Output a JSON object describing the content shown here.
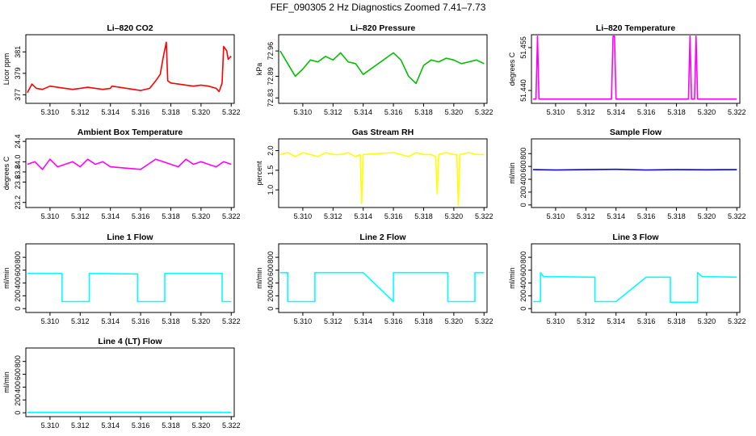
{
  "figure": {
    "title": "FEF_090305  2 Hz Diagnostics Zoomed 7.41–7.73"
  },
  "colors": {
    "red": "#ff0000",
    "green": "#00c000",
    "magenta": "#ff00ff",
    "yellow": "#ffff00",
    "blue": "#0000ff",
    "cyan": "#00ffff"
  },
  "chart_data": [
    {
      "type": "line",
      "title": "Li–820 CO2",
      "xlabel": "",
      "ylabel": "Licor ppm",
      "xlim": [
        5.3084,
        5.3222
      ],
      "ylim": [
        376.2,
        382.6
      ],
      "color": "red",
      "xticks": [
        "5.310",
        "5.312",
        "5.314",
        "5.316",
        "5.318",
        "5.320",
        "5.322"
      ],
      "yticks": [
        "377",
        "379",
        "381"
      ],
      "series": [
        {
          "x": [
            5.3085,
            5.3088,
            5.3091,
            5.3095,
            5.31,
            5.3105,
            5.311,
            5.3115,
            5.312,
            5.3125,
            5.313,
            5.3135,
            5.314,
            5.3141,
            5.316,
            5.3166,
            5.317,
            5.3173,
            5.3175,
            5.3177,
            5.3178,
            5.318,
            5.3185,
            5.319,
            5.3195,
            5.32,
            5.3205,
            5.321,
            5.3212,
            5.3214,
            5.3215,
            5.3217,
            5.3218,
            5.322
          ],
          "y": [
            377.2,
            378.0,
            377.6,
            377.5,
            377.8,
            377.7,
            377.6,
            377.5,
            377.6,
            377.7,
            377.6,
            377.5,
            377.6,
            377.8,
            377.4,
            377.6,
            378.3,
            378.9,
            380.5,
            381.9,
            378.3,
            378.1,
            378.0,
            377.9,
            377.8,
            377.9,
            377.8,
            377.6,
            377.3,
            378.1,
            381.5,
            381.1,
            380.3,
            380.6
          ]
        }
      ]
    },
    {
      "type": "line",
      "title": "Li–820 Pressure",
      "xlabel": "",
      "ylabel": "kPa",
      "xlim": [
        5.3084,
        5.3222
      ],
      "ylim": [
        72.815,
        73.005
      ],
      "color": "green",
      "xticks": [
        "5.310",
        "5.312",
        "5.314",
        "5.316",
        "5.318",
        "5.320",
        "5.322"
      ],
      "yticks": [
        "72.83",
        "72.89",
        "72.96"
      ],
      "series": [
        {
          "x": [
            5.3085,
            5.309,
            5.3095,
            5.31,
            5.3105,
            5.311,
            5.3115,
            5.312,
            5.3125,
            5.313,
            5.3135,
            5.314,
            5.316,
            5.3165,
            5.317,
            5.3175,
            5.318,
            5.3185,
            5.319,
            5.3195,
            5.32,
            5.3205,
            5.321,
            5.3215,
            5.322
          ],
          "y": [
            72.96,
            72.925,
            72.89,
            72.91,
            72.935,
            72.93,
            72.945,
            72.935,
            72.955,
            72.93,
            72.925,
            72.895,
            72.955,
            72.935,
            72.89,
            72.87,
            72.92,
            72.935,
            72.93,
            72.94,
            72.935,
            72.925,
            72.93,
            72.935,
            72.925
          ]
        }
      ]
    },
    {
      "type": "line",
      "title": "Li–820 Temperature",
      "xlabel": "",
      "ylabel": "degrees C",
      "xlim": [
        5.3084,
        5.3222
      ],
      "ylim": [
        51.4355,
        51.4595
      ],
      "color": "magenta",
      "xticks": [
        "5.310",
        "5.312",
        "5.314",
        "5.316",
        "5.318",
        "5.320",
        "5.322"
      ],
      "yticks": [
        "51.440",
        "51.455"
      ],
      "series": [
        {
          "x": [
            5.3085,
            5.3087,
            5.3088,
            5.3089,
            5.3137,
            5.3138,
            5.3139,
            5.314,
            5.3188,
            5.3189,
            5.319,
            5.3192,
            5.3193,
            5.3194,
            5.322
          ],
          "y": [
            51.437,
            51.437,
            51.459,
            51.437,
            51.437,
            51.459,
            51.459,
            51.437,
            51.437,
            51.459,
            51.437,
            51.437,
            51.459,
            51.437,
            51.437
          ]
        }
      ]
    },
    {
      "type": "line",
      "title": "Ambient Box Temperature",
      "xlabel": "",
      "ylabel": "degrees C",
      "xlim": [
        5.3084,
        5.3222
      ],
      "ylim": [
        23.1,
        24.45
      ],
      "color": "magenta",
      "xticks": [
        "5.310",
        "5.312",
        "5.314",
        "5.316",
        "5.318",
        "5.320",
        "5.322"
      ],
      "yticks": [
        "23.2",
        "23.6",
        "23.8",
        "24.0",
        "24.4"
      ],
      "series": [
        {
          "x": [
            5.3085,
            5.309,
            5.3095,
            5.31,
            5.3105,
            5.311,
            5.3115,
            5.312,
            5.3125,
            5.313,
            5.3135,
            5.314,
            5.316,
            5.3165,
            5.317,
            5.3175,
            5.318,
            5.3185,
            5.319,
            5.3195,
            5.32,
            5.3205,
            5.321,
            5.3215,
            5.322
          ],
          "y": [
            23.95,
            24.0,
            23.85,
            24.05,
            23.9,
            23.95,
            24.0,
            23.9,
            24.05,
            23.95,
            24.0,
            23.9,
            23.85,
            23.95,
            24.05,
            24.0,
            23.95,
            23.9,
            24.05,
            23.95,
            24.0,
            23.95,
            23.9,
            24.0,
            23.95
          ]
        }
      ]
    },
    {
      "type": "line",
      "title": "Gas Stream RH",
      "xlabel": "",
      "ylabel": "percent",
      "xlim": [
        5.3084,
        5.3222
      ],
      "ylim": [
        0.55,
        2.3
      ],
      "color": "yellow",
      "xticks": [
        "5.310",
        "5.312",
        "5.314",
        "5.316",
        "5.318",
        "5.320",
        "5.322"
      ],
      "yticks": [
        "1.0",
        "1.5",
        "2.0"
      ],
      "series": [
        {
          "x": [
            5.3085,
            5.309,
            5.3095,
            5.31,
            5.3105,
            5.311,
            5.3115,
            5.312,
            5.3125,
            5.313,
            5.3135,
            5.3138,
            5.3139,
            5.314,
            5.316,
            5.3165,
            5.317,
            5.3175,
            5.318,
            5.3185,
            5.3188,
            5.3189,
            5.319,
            5.3195,
            5.32,
            5.3202,
            5.3203,
            5.3204,
            5.321,
            5.3215,
            5.322
          ],
          "y": [
            1.9,
            1.95,
            1.85,
            1.95,
            1.9,
            1.85,
            1.95,
            1.9,
            1.9,
            1.95,
            1.85,
            1.9,
            0.65,
            1.9,
            1.95,
            1.9,
            1.85,
            1.95,
            1.9,
            1.9,
            1.85,
            0.9,
            1.9,
            1.95,
            1.9,
            1.9,
            0.6,
            1.9,
            1.95,
            1.9,
            1.9
          ]
        }
      ]
    },
    {
      "type": "line",
      "title": "Sample Flow",
      "xlabel": "",
      "ylabel": "ml/min",
      "xlim": [
        5.3084,
        5.3222
      ],
      "ylim": [
        -40,
        1030
      ],
      "color": "blue",
      "xticks": [
        "5.310",
        "5.312",
        "5.314",
        "5.316",
        "5.318",
        "5.320",
        "5.322"
      ],
      "yticks": [
        "0",
        "200",
        "400",
        "600",
        "800"
      ],
      "series": [
        {
          "x": [
            5.3085,
            5.31,
            5.312,
            5.314,
            5.316,
            5.318,
            5.32,
            5.322
          ],
          "y": [
            550,
            545,
            550,
            555,
            545,
            550,
            548,
            550
          ]
        }
      ]
    },
    {
      "type": "line",
      "title": "Line 1 Flow",
      "xlabel": "",
      "ylabel": "ml/min",
      "xlim": [
        5.3084,
        5.3222
      ],
      "ylim": [
        -60,
        1010
      ],
      "color": "cyan",
      "xticks": [
        "5.310",
        "5.312",
        "5.314",
        "5.316",
        "5.318",
        "5.320",
        "5.322"
      ],
      "yticks": [
        "0",
        "200",
        "400",
        "600",
        "800"
      ],
      "series": [
        {
          "x": [
            5.3085,
            5.3108,
            5.3108,
            5.3126,
            5.3126,
            5.314,
            5.3158,
            5.3158,
            5.3176,
            5.3176,
            5.3214,
            5.3214,
            5.322
          ],
          "y": [
            550,
            550,
            110,
            110,
            550,
            545,
            540,
            110,
            110,
            550,
            550,
            110,
            110
          ]
        }
      ]
    },
    {
      "type": "line",
      "title": "Line 2 Flow",
      "xlabel": "",
      "ylabel": "ml/min",
      "xlim": [
        5.3084,
        5.3222
      ],
      "ylim": [
        -60,
        1010
      ],
      "color": "cyan",
      "xticks": [
        "5.310",
        "5.312",
        "5.314",
        "5.316",
        "5.318",
        "5.320",
        "5.322"
      ],
      "yticks": [
        "0",
        "200",
        "400",
        "600",
        "800"
      ],
      "series": [
        {
          "x": [
            5.3085,
            5.309,
            5.309,
            5.3108,
            5.3108,
            5.314,
            5.316,
            5.316,
            5.3196,
            5.3196,
            5.3214,
            5.3214,
            5.322
          ],
          "y": [
            560,
            560,
            110,
            110,
            560,
            560,
            110,
            560,
            560,
            110,
            110,
            560,
            560
          ]
        }
      ]
    },
    {
      "type": "line",
      "title": "Line 3 Flow",
      "xlabel": "",
      "ylabel": "ml/min",
      "xlim": [
        5.3084,
        5.3222
      ],
      "ylim": [
        -60,
        1010
      ],
      "color": "cyan",
      "xticks": [
        "5.310",
        "5.312",
        "5.314",
        "5.316",
        "5.318",
        "5.320",
        "5.322"
      ],
      "yticks": [
        "0",
        "200",
        "400",
        "600",
        "800"
      ],
      "series": [
        {
          "x": [
            5.3085,
            5.309,
            5.309,
            5.3092,
            5.3126,
            5.3126,
            5.314,
            5.316,
            5.3176,
            5.3176,
            5.3194,
            5.3194,
            5.3197,
            5.322
          ],
          "y": [
            110,
            110,
            560,
            500,
            490,
            110,
            110,
            490,
            490,
            100,
            100,
            560,
            500,
            490
          ]
        }
      ]
    },
    {
      "type": "line",
      "title": "Line 4 (LT) Flow",
      "xlabel": "",
      "ylabel": "ml/min",
      "xlim": [
        5.3084,
        5.3222
      ],
      "ylim": [
        -60,
        1010
      ],
      "color": "cyan",
      "xticks": [
        "5.310",
        "5.312",
        "5.314",
        "5.316",
        "5.318",
        "5.320",
        "5.322"
      ],
      "yticks": [
        "0",
        "200",
        "400",
        "600",
        "800"
      ],
      "series": [
        {
          "x": [
            5.3085,
            5.312,
            5.316,
            5.322
          ],
          "y": [
            5,
            5,
            5,
            5
          ]
        }
      ]
    }
  ]
}
